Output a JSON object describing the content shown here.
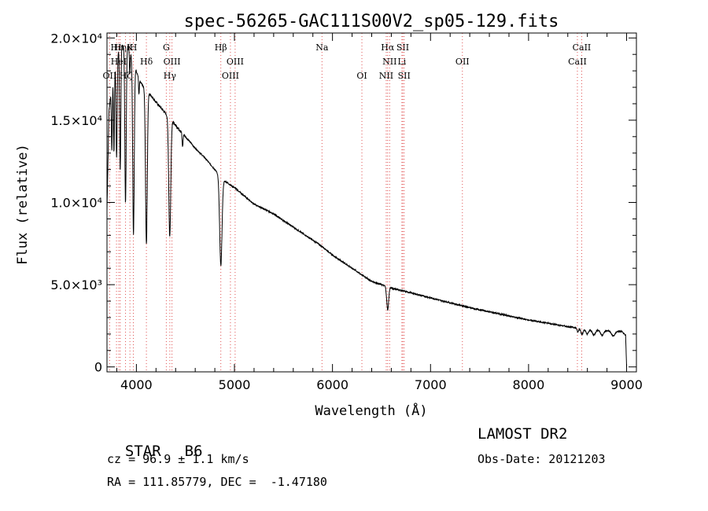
{
  "chart_data": {
    "type": "line",
    "title": "spec-56265-GAC111S00V2_sp05-129.fits",
    "xlabel": "Wavelength (Å)",
    "ylabel": "Flux (relative)",
    "xlim": [
      3700,
      9100
    ],
    "ylim": [
      -300,
      20300
    ],
    "x_ticks": [
      4000,
      5000,
      6000,
      7000,
      8000,
      9000
    ],
    "x_tick_labels": [
      "4000",
      "5000",
      "6000",
      "7000",
      "8000",
      "9000"
    ],
    "y_ticks": [
      0,
      5000,
      10000,
      15000,
      20000
    ],
    "y_tick_labels": [
      "0",
      "5.0×10³",
      "1.0×10⁴",
      "1.5×10⁴",
      "2.0×10⁴"
    ],
    "grid": false,
    "series": [
      {
        "continuum": [
          [
            3700,
            9500
          ],
          [
            3720,
            15500
          ],
          [
            3760,
            18000
          ],
          [
            3800,
            19000
          ],
          [
            3840,
            19500
          ],
          [
            3880,
            19600
          ],
          [
            3920,
            19500
          ],
          [
            3960,
            18800
          ],
          [
            4000,
            18000
          ],
          [
            4040,
            17300
          ],
          [
            4100,
            16800
          ],
          [
            4150,
            16500
          ],
          [
            4200,
            16100
          ],
          [
            4300,
            15400
          ],
          [
            4400,
            14700
          ],
          [
            4500,
            14000
          ],
          [
            4600,
            13300
          ],
          [
            4700,
            12700
          ],
          [
            4800,
            12000
          ],
          [
            4900,
            11300
          ],
          [
            5000,
            10900
          ],
          [
            5100,
            10400
          ],
          [
            5200,
            9900
          ],
          [
            5300,
            9600
          ],
          [
            5400,
            9300
          ],
          [
            5500,
            8900
          ],
          [
            5600,
            8500
          ],
          [
            5700,
            8100
          ],
          [
            5800,
            7700
          ],
          [
            5900,
            7300
          ],
          [
            6000,
            6800
          ],
          [
            6100,
            6400
          ],
          [
            6200,
            6000
          ],
          [
            6300,
            5600
          ],
          [
            6400,
            5200
          ],
          [
            6500,
            5000
          ],
          [
            6600,
            4800
          ],
          [
            6700,
            4650
          ],
          [
            6800,
            4500
          ],
          [
            6900,
            4350
          ],
          [
            7000,
            4200
          ],
          [
            7200,
            3900
          ],
          [
            7400,
            3600
          ],
          [
            7600,
            3350
          ],
          [
            7800,
            3100
          ],
          [
            8000,
            2850
          ],
          [
            8200,
            2650
          ],
          [
            8400,
            2450
          ],
          [
            8600,
            2300
          ],
          [
            8800,
            2200
          ],
          [
            8950,
            2150
          ],
          [
            8990,
            1900
          ],
          [
            9000,
            0
          ]
        ],
        "absorption_lines": [
          {
            "center": 3750,
            "depth": 4200,
            "width": 5
          },
          {
            "center": 3771,
            "depth": 5200,
            "width": 5
          },
          {
            "center": 3798,
            "depth": 6200,
            "width": 6
          },
          {
            "center": 3835,
            "depth": 7500,
            "width": 6
          },
          {
            "center": 3889,
            "depth": 9600,
            "width": 7
          },
          {
            "center": 3933,
            "depth": 1500,
            "width": 4
          },
          {
            "center": 3970,
            "depth": 10500,
            "width": 8
          },
          {
            "center": 4026,
            "depth": 1000,
            "width": 4
          },
          {
            "center": 4102,
            "depth": 9300,
            "width": 9
          },
          {
            "center": 4340,
            "depth": 7200,
            "width": 10
          },
          {
            "center": 4471,
            "depth": 800,
            "width": 5
          },
          {
            "center": 4861,
            "depth": 5400,
            "width": 12
          },
          {
            "center": 6563,
            "depth": 1400,
            "width": 10
          },
          {
            "center": 8502,
            "depth": 250,
            "width": 8
          },
          {
            "center": 8545,
            "depth": 350,
            "width": 12
          },
          {
            "center": 8598,
            "depth": 300,
            "width": 14
          },
          {
            "center": 8665,
            "depth": 320,
            "width": 16
          },
          {
            "center": 8750,
            "depth": 300,
            "width": 16
          },
          {
            "center": 8863,
            "depth": 300,
            "width": 18
          }
        ]
      }
    ],
    "line_markers": [
      {
        "label": "Hε",
        "wavelength": 3797,
        "row": 0
      },
      {
        "label": "Hη",
        "wavelength": 3835,
        "row": 0
      },
      {
        "label": "OII",
        "wavelength": 3727,
        "row": 2
      },
      {
        "label": "Hζ",
        "wavelength": 3889,
        "row": 2
      },
      {
        "label": "HeI",
        "wavelength": 3820,
        "row": 1
      },
      {
        "label": "K",
        "wavelength": 3934,
        "row": 0
      },
      {
        "label": "H",
        "wavelength": 3969,
        "row": 0
      },
      {
        "label": "Hδ",
        "wavelength": 4102,
        "row": 1
      },
      {
        "label": "G",
        "wavelength": 4305,
        "row": 0
      },
      {
        "label": "OIII",
        "wavelength": 4363,
        "row": 1
      },
      {
        "label": "Hγ",
        "wavelength": 4341,
        "row": 2
      },
      {
        "label": "Hβ",
        "wavelength": 4861,
        "row": 0
      },
      {
        "label": "OIII",
        "wavelength": 5007,
        "row": 1
      },
      {
        "label": "OIII",
        "wavelength": 4959,
        "row": 2
      },
      {
        "label": "Na",
        "wavelength": 5893,
        "row": 0
      },
      {
        "label": "OI",
        "wavelength": 6300,
        "row": 2
      },
      {
        "label": "Hα",
        "wavelength": 6563,
        "row": 0
      },
      {
        "label": "SII",
        "wavelength": 6717,
        "row": 0
      },
      {
        "label": "NII",
        "wavelength": 6583,
        "row": 1
      },
      {
        "label": "Li",
        "wavelength": 6708,
        "row": 1
      },
      {
        "label": "NII",
        "wavelength": 6548,
        "row": 2
      },
      {
        "label": "SII",
        "wavelength": 6731,
        "row": 2
      },
      {
        "label": "OII",
        "wavelength": 7325,
        "row": 1
      },
      {
        "label": "CaII",
        "wavelength": 8542,
        "row": 0
      },
      {
        "label": "CaII",
        "wavelength": 8498,
        "row": 1
      }
    ]
  },
  "info": {
    "object_type": "STAR",
    "subclass": "B6",
    "survey": "LAMOST DR2",
    "cz": "cz = 96.9 ± 1.1 km/s",
    "obs_date": "Obs-Date: 20121203",
    "coords": "RA = 111.85779, DEC =  -1.47180"
  },
  "colors": {
    "spectrum": "#000000",
    "marker_line": "#e05050",
    "marker_dots": "#808080"
  }
}
